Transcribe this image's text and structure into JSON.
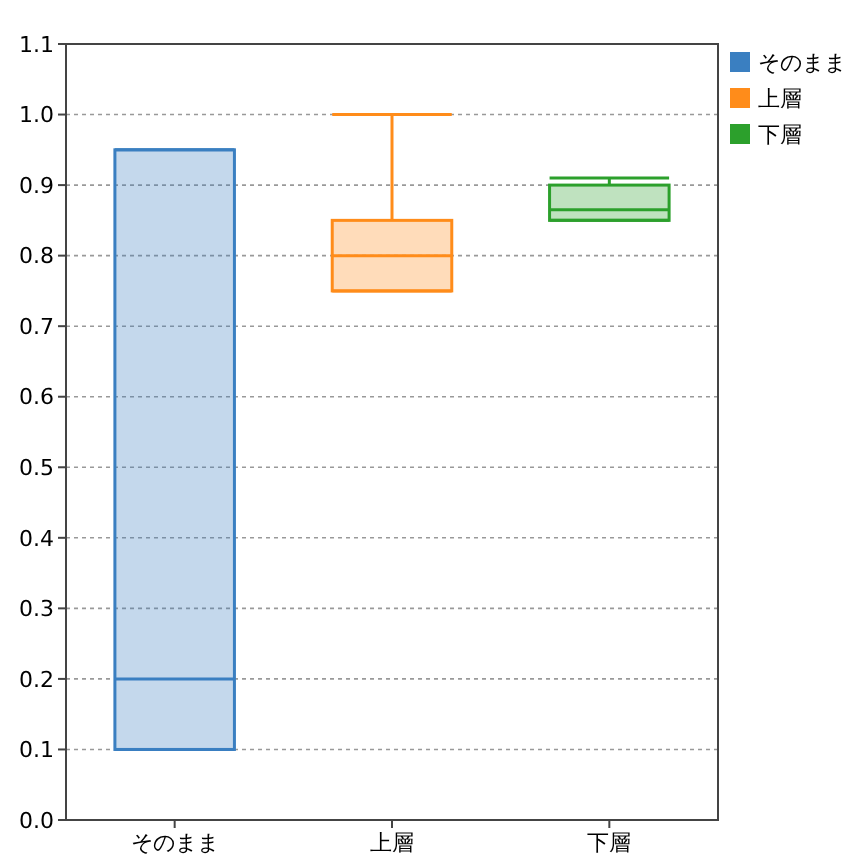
{
  "chart_data": {
    "type": "box",
    "categories": [
      "そのまま",
      "上層",
      "下層"
    ],
    "series": [
      {
        "name": "そのまま",
        "color": "#3a7fc1",
        "boxes": [
          {
            "low": 0.1,
            "q1": 0.1,
            "median": 0.2,
            "q3": 0.95,
            "high": 0.95
          },
          null,
          null
        ]
      },
      {
        "name": "上層",
        "color": "#ff8c1a",
        "boxes": [
          null,
          {
            "low": 0.75,
            "q1": 0.75,
            "median": 0.8,
            "q3": 0.85,
            "high": 1.0
          },
          null
        ]
      },
      {
        "name": "下層",
        "color": "#2ca02c",
        "boxes": [
          null,
          null,
          {
            "low": 0.85,
            "q1": 0.85,
            "median": 0.865,
            "q3": 0.9,
            "high": 0.91
          }
        ]
      }
    ],
    "ylim": [
      0,
      1.1
    ],
    "yticks": [
      {
        "value": 0,
        "label": "0.0"
      },
      0.1,
      0.2,
      0.3,
      0.4,
      0.5,
      0.6,
      0.7,
      0.8,
      0.9,
      {
        "value": 1,
        "label": "1.0"
      },
      1.1
    ],
    "grid": "y",
    "legend": "top right"
  }
}
